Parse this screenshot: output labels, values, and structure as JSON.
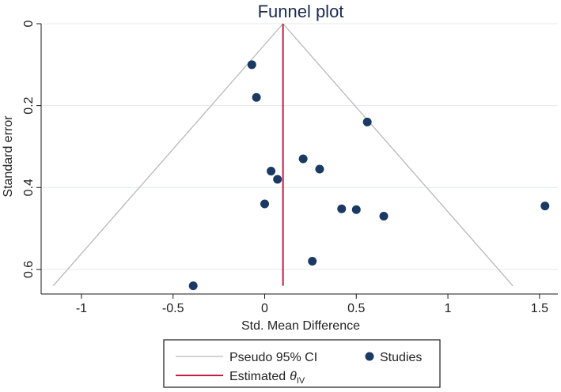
{
  "chart_data": {
    "type": "scatter",
    "title": "Funnel plot",
    "xlabel": "Std. Mean Difference",
    "ylabel": "Standard error",
    "xlim": [
      -1.22,
      1.6
    ],
    "ylim": [
      0,
      0.66
    ],
    "y_inverted": true,
    "x_ticks": [
      -1,
      -0.5,
      0,
      0.5,
      1,
      1.5
    ],
    "x_tick_labels": [
      "-1",
      "-0.5",
      "0",
      "0.5",
      "1",
      "1.5"
    ],
    "y_ticks": [
      0,
      0.2,
      0.4,
      0.6
    ],
    "y_tick_labels": [
      "0",
      "0.2",
      "0.4",
      "0.6"
    ],
    "grid": "horizontal",
    "estimate": 0.1,
    "ci_se_max": 0.64,
    "series": [
      {
        "name": "Studies",
        "points": [
          {
            "x": -0.07,
            "y": 0.1
          },
          {
            "x": -0.045,
            "y": 0.18
          },
          {
            "x": 0.56,
            "y": 0.24
          },
          {
            "x": 0.21,
            "y": 0.33
          },
          {
            "x": 0.3,
            "y": 0.355
          },
          {
            "x": 0.035,
            "y": 0.36
          },
          {
            "x": 0.07,
            "y": 0.38
          },
          {
            "x": 0.0,
            "y": 0.44
          },
          {
            "x": 0.42,
            "y": 0.452
          },
          {
            "x": 0.5,
            "y": 0.454
          },
          {
            "x": 0.65,
            "y": 0.47
          },
          {
            "x": 1.53,
            "y": 0.445
          },
          {
            "x": 0.26,
            "y": 0.58
          },
          {
            "x": -0.39,
            "y": 0.64
          }
        ]
      }
    ],
    "legend": {
      "position": "bottom",
      "ci_label": "Pseudo 95% CI",
      "studies_label": "Studies",
      "estimate_label": "Estimated",
      "estimate_symbol": "θ",
      "estimate_subscript": "IV"
    }
  },
  "colors": {
    "ci_line": "#b9b9b9",
    "estimate_line": "#c41e46",
    "points": "#1a3a63",
    "grid": "#e4e9ee",
    "title": "#1a2b4c"
  }
}
